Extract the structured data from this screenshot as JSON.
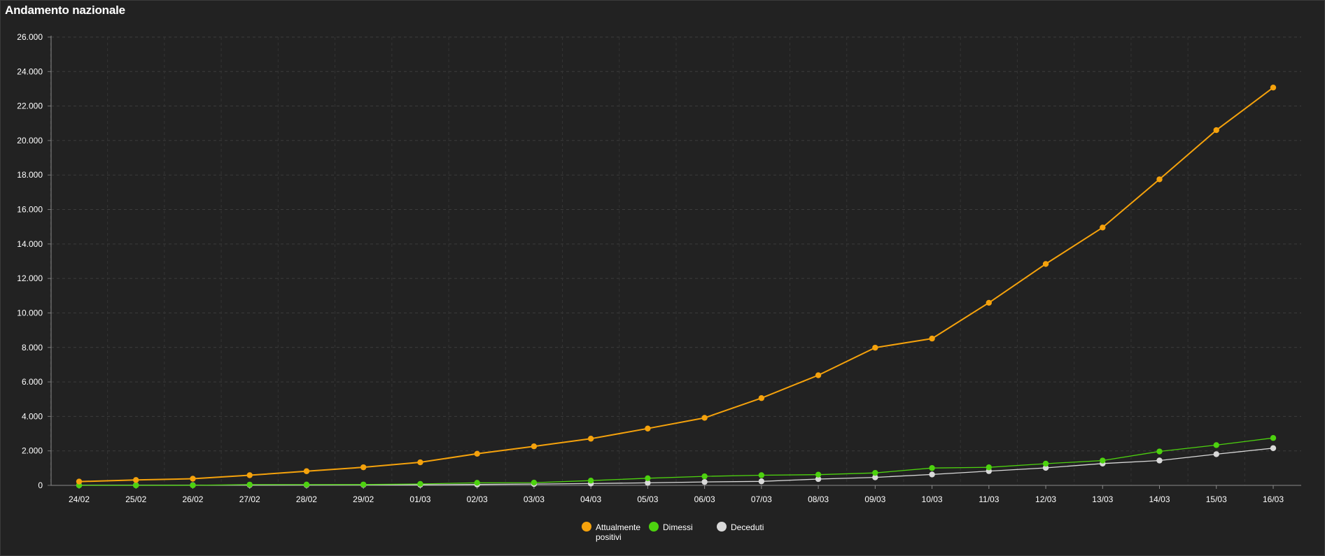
{
  "page": {
    "title": "Andamento nazionale"
  },
  "chart_data": {
    "type": "line",
    "title": "Andamento nazionale",
    "xlabel": "",
    "ylabel": "",
    "categories": [
      "24/02",
      "25/02",
      "26/02",
      "27/02",
      "28/02",
      "29/02",
      "01/03",
      "02/03",
      "03/03",
      "04/03",
      "05/03",
      "06/03",
      "07/03",
      "08/03",
      "09/03",
      "10/03",
      "11/03",
      "12/03",
      "13/03",
      "14/03",
      "15/03",
      "16/03"
    ],
    "y_ticks": [
      0,
      2000,
      4000,
      6000,
      8000,
      10000,
      12000,
      14000,
      16000,
      18000,
      20000,
      22000,
      24000,
      26000
    ],
    "y_tick_labels": [
      "0",
      "2.000",
      "4.000",
      "6.000",
      "8.000",
      "10.000",
      "12.000",
      "14.000",
      "16.000",
      "18.000",
      "20.000",
      "22.000",
      "24.000",
      "26.000"
    ],
    "ylim": [
      0,
      26000
    ],
    "grid": true,
    "legend_position": "bottom-center",
    "series": [
      {
        "name": "Attualmente positivi",
        "color": "#f5a20c",
        "values": [
          221,
          311,
          385,
          588,
          821,
          1049,
          1337,
          1834,
          2263,
          2707,
          3296,
          3916,
          5061,
          6387,
          7985,
          8514,
          10590,
          12840,
          14955,
          17750,
          20603,
          23073
        ]
      },
      {
        "name": "Dimessi",
        "color": "#4dd20f",
        "values": [
          1,
          1,
          3,
          45,
          46,
          50,
          83,
          149,
          160,
          276,
          414,
          523,
          589,
          622,
          724,
          1004,
          1045,
          1258,
          1439,
          1966,
          2335,
          2749
        ]
      },
      {
        "name": "Deceduti",
        "color": "#d9d9d9",
        "values": [
          7,
          10,
          12,
          17,
          21,
          29,
          34,
          52,
          79,
          107,
          148,
          197,
          233,
          366,
          463,
          631,
          827,
          1016,
          1266,
          1441,
          1809,
          2158
        ]
      }
    ]
  }
}
